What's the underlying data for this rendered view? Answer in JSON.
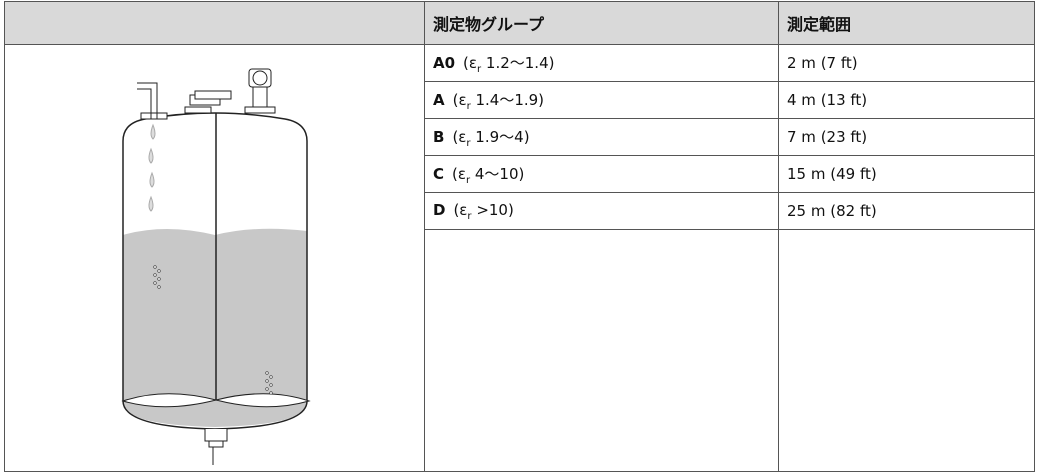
{
  "table": {
    "header": [
      "測定物グループ",
      "測定範囲"
    ],
    "rows": [
      {
        "group": "A0",
        "prefix": "(ε",
        "sub": "r",
        "suffix": " 1.2〜1.4)",
        "range": "2 m (7 ft)"
      },
      {
        "group": "A",
        "prefix": "(ε",
        "sub": "r",
        "suffix": " 1.4〜1.9)",
        "range": "4 m (13 ft)"
      },
      {
        "group": "B",
        "prefix": "(ε",
        "sub": "r",
        "suffix": " 1.9〜4)",
        "range": "7 m (23 ft)"
      },
      {
        "group": "C",
        "prefix": "(ε",
        "sub": "r",
        "suffix": " 4〜10)",
        "range": "15 m (49 ft)"
      },
      {
        "group": "D",
        "prefix": "(ε",
        "sub": "r",
        "suffix": " >10)",
        "range": "25 m (82 ft)"
      }
    ]
  }
}
